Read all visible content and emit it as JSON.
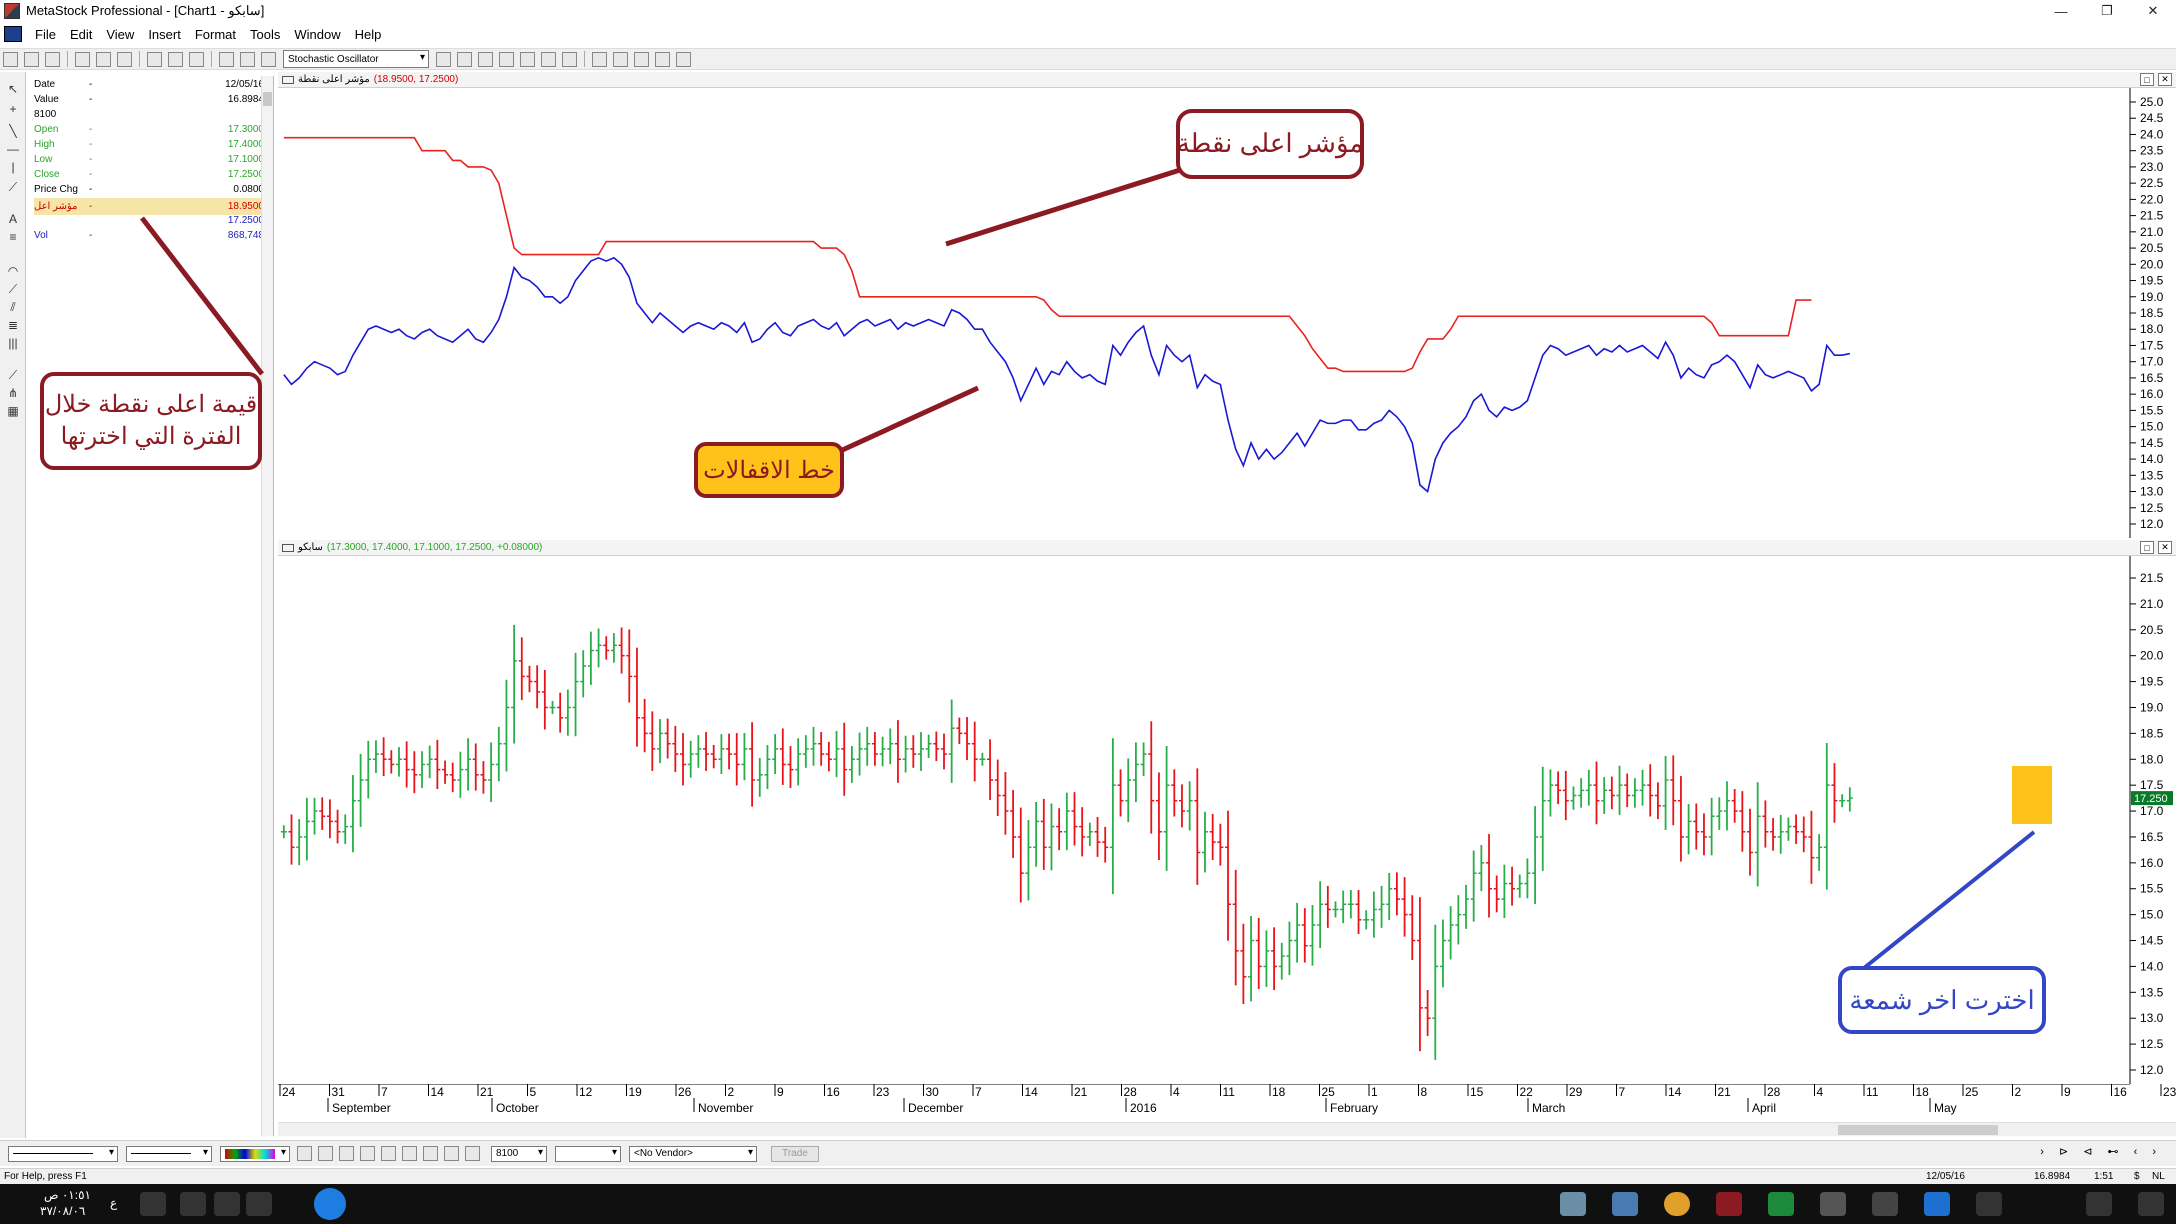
{
  "window": {
    "title": "MetaStock Professional - [Chart1 - سابكو]"
  },
  "menu": {
    "items": [
      "File",
      "Edit",
      "View",
      "Insert",
      "Format",
      "Tools",
      "Window",
      "Help"
    ]
  },
  "toolbar": {
    "indicator_select": "Stochastic Oscillator"
  },
  "data_window": {
    "rows": [
      {
        "label": "Date",
        "value": "12/05/16",
        "color": "#000000"
      },
      {
        "label": "Value",
        "value": "16.8984",
        "color": "#000000"
      },
      {
        "label": "8100",
        "value": "",
        "color": "#000000"
      },
      {
        "label": "Open",
        "value": "17.3000",
        "color": "#2aa52a"
      },
      {
        "label": "High",
        "value": "17.4000",
        "color": "#2aa52a"
      },
      {
        "label": "Low",
        "value": "17.1000",
        "color": "#2aa52a"
      },
      {
        "label": "Close",
        "value": "17.2500",
        "color": "#2aa52a"
      },
      {
        "label": "Price Chg",
        "value": "0.0800",
        "color": "#000000"
      },
      {
        "label": "مؤشر اعل",
        "value": "18.9500",
        "color": "#d00000"
      },
      {
        "label": "",
        "value": "17.2500",
        "color": "#2020c0"
      },
      {
        "label": "Vol",
        "value": "868,748",
        "color": "#2020c0"
      }
    ]
  },
  "indicator_pane": {
    "name": "مؤشر اعلى نقطة",
    "values": "(18.9500, 17.2500)",
    "y_ticks": [
      "25.0",
      "24.5",
      "24.0",
      "23.5",
      "23.0",
      "22.5",
      "22.0",
      "21.5",
      "21.0",
      "20.5",
      "20.0",
      "19.5",
      "19.0",
      "18.5",
      "18.0",
      "17.5",
      "17.0",
      "16.5",
      "16.0",
      "15.5",
      "15.0",
      "14.5",
      "14.0",
      "13.5",
      "13.0",
      "12.5",
      "12.0"
    ]
  },
  "price_pane": {
    "name": "سابكو",
    "values": "(17.3000, 17.4000, 17.1000, 17.2500, +0.08000)",
    "y_ticks": [
      "21.5",
      "21.0",
      "20.5",
      "20.0",
      "19.5",
      "19.0",
      "18.5",
      "18.0",
      "17.5",
      "17.0",
      "16.5",
      "16.0",
      "15.5",
      "15.0",
      "14.5",
      "14.0",
      "13.5",
      "13.0",
      "12.5",
      "12.0"
    ],
    "last_price_label": "17.250"
  },
  "x_axis": {
    "day_ticks": [
      "24",
      "31",
      "7",
      "14",
      "21",
      "5",
      "12",
      "19",
      "26",
      "2",
      "9",
      "16",
      "23",
      "30",
      "7",
      "14",
      "21",
      "28",
      "4",
      "11",
      "18",
      "25",
      "1",
      "8",
      "15",
      "22",
      "29",
      "7",
      "14",
      "21",
      "28",
      "4",
      "11",
      "18",
      "25",
      "2",
      "9",
      "16",
      "23"
    ],
    "month_labels": [
      "September",
      "October",
      "November",
      "December",
      "2016",
      "February",
      "March",
      "April",
      "May"
    ]
  },
  "annotations": {
    "high_indicator": "مؤشر اعلى نقطة",
    "close_line": "خط الاقفالات",
    "high_value_line1": "قيمة اعلى نقطة خلال",
    "high_value_line2": "الفترة التي اخترتها",
    "last_candle": "اخترت اخر شمعة"
  },
  "bottom_bar": {
    "symbol_field": "8100",
    "vendor_select": "<No Vendor>",
    "trade_label": "Trade"
  },
  "status_bar": {
    "help_text": "For Help, press F1",
    "date": "12/05/16",
    "value": "16.8984",
    "time": "1:51",
    "currency": "$",
    "locale": "NL"
  },
  "taskbar": {
    "time": "٠١:٥١ ص",
    "date": "٣٧/٠٨/٠٦",
    "lang": "ع"
  },
  "colors": {
    "high_line": "#e8231f",
    "close_line": "#1a17d6",
    "bull_candle": "#27ae4a",
    "bear_candle": "#e8141a",
    "callout_border": "#8b1a22",
    "callout_blue_border": "#3346c6",
    "callout_yellow": "#ffc21a"
  },
  "chart_data": {
    "type": "line",
    "series": [
      {
        "name": "مؤشر اعلى نقطة",
        "values": [
          23.9,
          23.9,
          23.9,
          23.9,
          23.9,
          23.9,
          23.9,
          23.9,
          23.9,
          23.9,
          23.9,
          23.9,
          23.9,
          23.9,
          23.9,
          23.9,
          23.9,
          23.9,
          23.5,
          23.5,
          23.5,
          23.5,
          23.2,
          23.2,
          23.0,
          23.0,
          23.0,
          22.9,
          22.5,
          21.5,
          20.5,
          20.3,
          20.3,
          20.3,
          20.3,
          20.3,
          20.3,
          20.3,
          20.3,
          20.3,
          20.3,
          20.3,
          20.7,
          20.7,
          20.7,
          20.7,
          20.7,
          20.7,
          20.7,
          20.7,
          20.7,
          20.7,
          20.7,
          20.7,
          20.7,
          20.7,
          20.7,
          20.7,
          20.7,
          20.7,
          20.7,
          20.7,
          20.7,
          20.7,
          20.7,
          20.7,
          20.7,
          20.7,
          20.7,
          20.7,
          20.5,
          20.5,
          20.5,
          20.3,
          19.8,
          19.0,
          19.0,
          19.0,
          19.0,
          19.0,
          19.0,
          19.0,
          19.0,
          19.0,
          19.0,
          19.0,
          19.0,
          19.0,
          19.0,
          19.0,
          19.0,
          19.0,
          19.0,
          19.0,
          19.0,
          19.0,
          19.0,
          19.0,
          19.0,
          18.9,
          18.6,
          18.4,
          18.4,
          18.4,
          18.4,
          18.4,
          18.4,
          18.4,
          18.4,
          18.4,
          18.4,
          18.4,
          18.4,
          18.4,
          18.4,
          18.4,
          18.4,
          18.4,
          18.4,
          18.4,
          18.4,
          18.4,
          18.4,
          18.4,
          18.4,
          18.4,
          18.4,
          18.4,
          18.4,
          18.4,
          18.4,
          18.4,
          18.1,
          17.8,
          17.4,
          17.1,
          16.8,
          16.8,
          16.7,
          16.7,
          16.7,
          16.7,
          16.7,
          16.7,
          16.7,
          16.7,
          16.7,
          16.8,
          17.3,
          17.7,
          17.7,
          17.7,
          18.0,
          18.4,
          18.4,
          18.4,
          18.4,
          18.4,
          18.4,
          18.4,
          18.4,
          18.4,
          18.4,
          18.4,
          18.4,
          18.4,
          18.4,
          18.4,
          18.4,
          18.4,
          18.4,
          18.4,
          18.4,
          18.4,
          18.4,
          18.4,
          18.4,
          18.4,
          18.4,
          18.4,
          18.4,
          18.4,
          18.4,
          18.4,
          18.4,
          18.4,
          18.2,
          17.8,
          17.8,
          17.8,
          17.8,
          17.8,
          17.8,
          17.8,
          17.8,
          17.8,
          17.8,
          18.9,
          18.9,
          18.9
        ]
      },
      {
        "name": "سابكو",
        "values": [
          16.6,
          16.3,
          16.5,
          16.8,
          17.0,
          16.9,
          16.8,
          16.6,
          16.7,
          17.2,
          17.6,
          18.0,
          18.1,
          18.0,
          17.9,
          18.0,
          17.8,
          17.7,
          17.9,
          18.0,
          17.8,
          17.7,
          17.6,
          17.8,
          18.0,
          17.7,
          17.6,
          17.9,
          18.3,
          19.0,
          19.9,
          19.6,
          19.5,
          19.3,
          19.0,
          19.0,
          18.8,
          19.0,
          19.5,
          19.8,
          20.1,
          20.2,
          20.1,
          20.2,
          20.0,
          19.6,
          18.8,
          18.5,
          18.2,
          18.5,
          18.3,
          18.1,
          17.9,
          18.1,
          18.2,
          18.1,
          18.0,
          18.2,
          18.1,
          17.9,
          18.2,
          17.6,
          17.7,
          18.0,
          18.2,
          17.9,
          17.8,
          18.1,
          18.2,
          18.3,
          18.1,
          18.0,
          18.2,
          17.8,
          18.0,
          18.2,
          18.3,
          18.1,
          18.2,
          18.3,
          18.0,
          18.2,
          18.1,
          18.2,
          18.3,
          18.2,
          18.1,
          18.6,
          18.5,
          18.3,
          18.0,
          18.0,
          17.6,
          17.3,
          17.0,
          16.5,
          15.8,
          16.3,
          16.8,
          16.3,
          16.7,
          16.6,
          17.0,
          16.7,
          16.5,
          16.6,
          16.4,
          16.3,
          17.5,
          17.2,
          17.6,
          17.9,
          18.1,
          17.2,
          16.6,
          17.5,
          17.2,
          17.0,
          17.2,
          16.2,
          16.6,
          16.4,
          16.3,
          15.2,
          14.3,
          13.8,
          14.5,
          14.0,
          14.3,
          14.0,
          14.2,
          14.5,
          14.8,
          14.4,
          14.8,
          15.2,
          15.1,
          15.1,
          15.2,
          15.2,
          14.9,
          14.9,
          15.1,
          15.2,
          15.5,
          15.3,
          15.0,
          14.5,
          13.2,
          13.0,
          14.0,
          14.5,
          14.8,
          15.0,
          15.3,
          15.8,
          16.0,
          15.5,
          15.3,
          15.6,
          15.5,
          15.6,
          15.8,
          16.5,
          17.2,
          17.5,
          17.4,
          17.2,
          17.3,
          17.4,
          17.5,
          17.2,
          17.4,
          17.3,
          17.5,
          17.3,
          17.4,
          17.5,
          17.3,
          17.1,
          17.6,
          17.2,
          16.5,
          16.8,
          16.6,
          16.5,
          16.9,
          17.0,
          17.2,
          17.0,
          16.6,
          16.2,
          16.9,
          16.6,
          16.5,
          16.6,
          16.7,
          16.6,
          16.5,
          16.1,
          16.3,
          17.5,
          17.2,
          17.2,
          17.25
        ]
      }
    ],
    "price_ylim": [
      12.0,
      21.5
    ],
    "indicator_ylim": [
      12.0,
      25.0
    ]
  }
}
